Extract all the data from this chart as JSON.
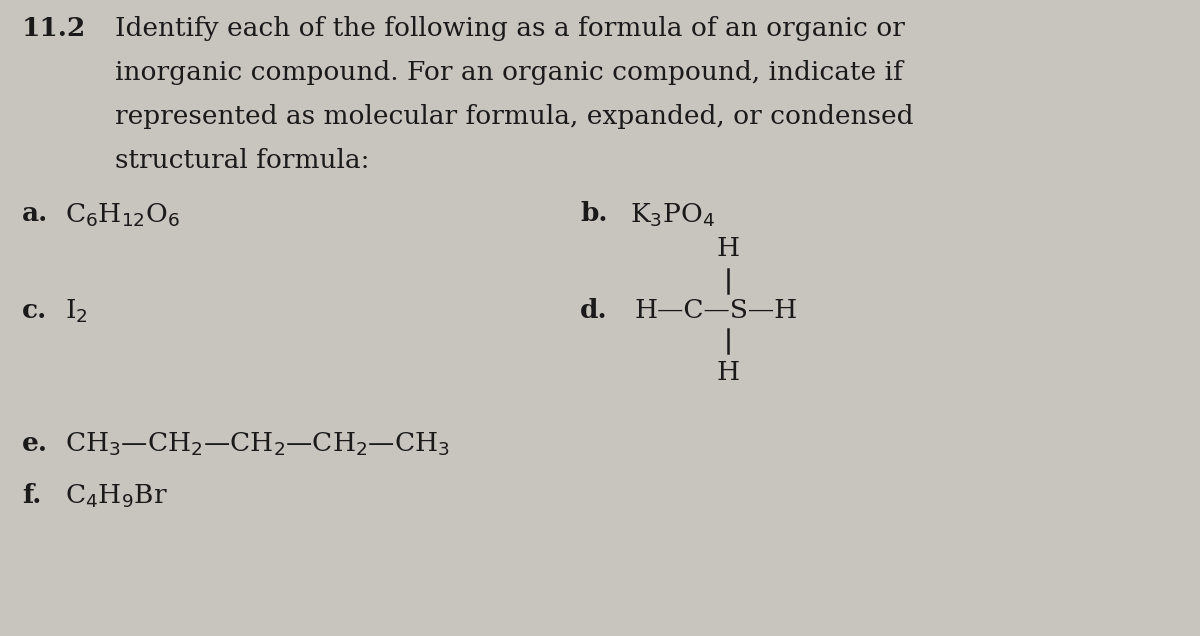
{
  "background_color": "#c8c4be",
  "text_color": "#1a1a1a",
  "title_number": "11.2",
  "title_text_line1": "Identify each of the following as a formula of an organic or",
  "title_text_line2": "inorganic compound. For an organic compound, indicate if",
  "title_text_line3": "represented as molecular formula, expanded, or condensed",
  "title_text_line4": "structural formula:",
  "item_a_label": "a.",
  "item_a_formula": "C$_6$H$_{12}$O$_6$",
  "item_b_label": "b.",
  "item_b_formula": "K$_3$PO$_4$",
  "item_c_label": "c.",
  "item_c_formula": "I$_2$",
  "item_d_label": "d.",
  "item_d_formula": "H—C—S—H",
  "item_d_H_top": "H",
  "item_d_H_bottom": "H",
  "item_e_label": "e.",
  "item_e_formula": "CH$_3$—CH$_2$—CH$_2$—CH$_2$—CH$_3$",
  "item_f_label": "f.",
  "item_f_formula": "C$_4$H$_9$Br",
  "font_size_title": 19,
  "font_size_number": 19,
  "font_size_items": 19,
  "font_family": "DejaVu Serif"
}
